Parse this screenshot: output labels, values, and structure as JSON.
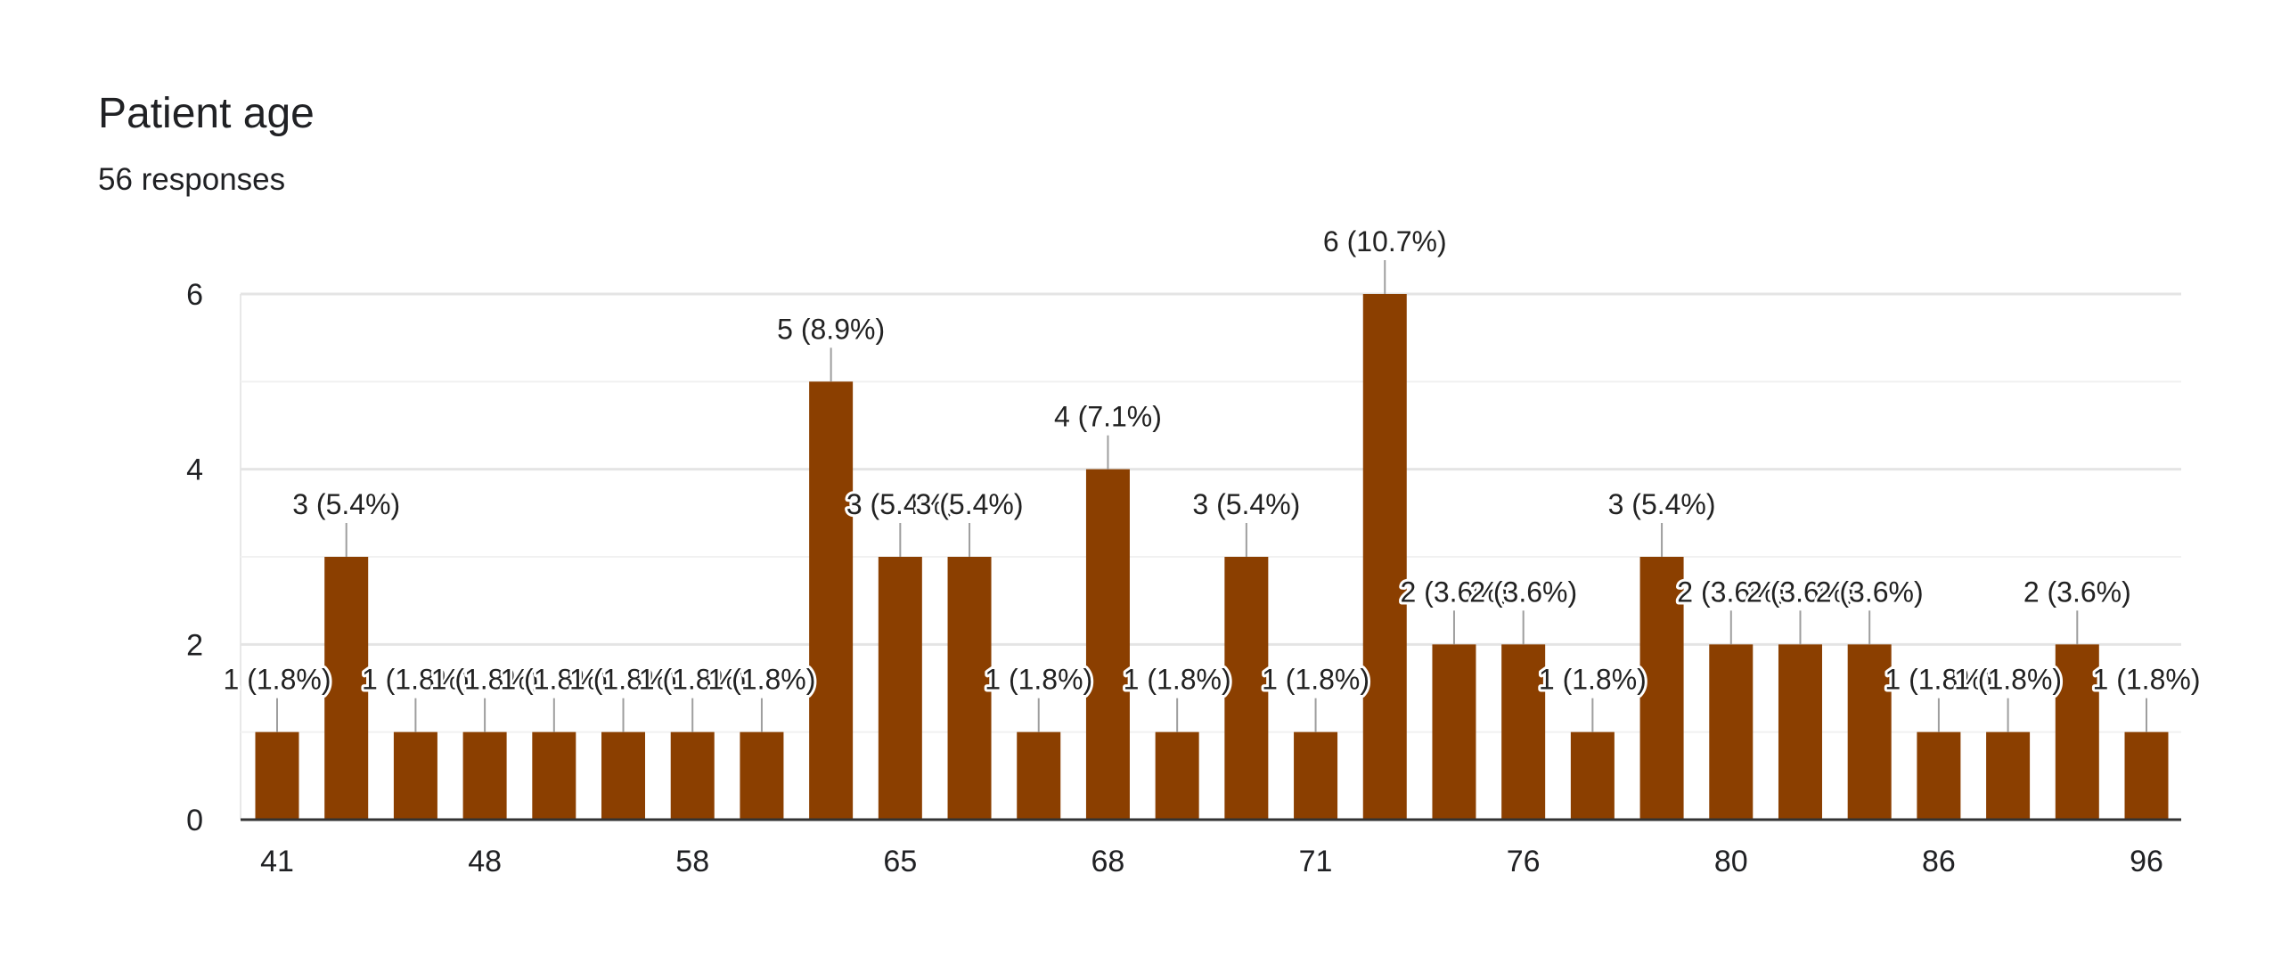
{
  "title": "Patient age",
  "subtitle": "56 responses",
  "colors": {
    "bar": "#8b3f00",
    "grid": "#e8e8e8",
    "axis": "#333333",
    "text": "#202124"
  },
  "chart_data": {
    "type": "bar",
    "title": "Patient age",
    "subtitle": "56 responses",
    "grid": true,
    "ylim": [
      0,
      6
    ],
    "y_ticks": [
      0,
      2,
      4,
      6
    ],
    "x_tick_labels": [
      {
        "index": 0,
        "label": "41"
      },
      {
        "index": 3,
        "label": "48"
      },
      {
        "index": 6,
        "label": "58"
      },
      {
        "index": 9,
        "label": "65"
      },
      {
        "index": 12,
        "label": "68"
      },
      {
        "index": 15,
        "label": "71"
      },
      {
        "index": 18,
        "label": "76"
      },
      {
        "index": 21,
        "label": "80"
      },
      {
        "index": 24,
        "label": "86"
      },
      {
        "index": 27,
        "label": "96"
      }
    ],
    "bars": [
      {
        "value": 1,
        "label": "1 (1.8%)"
      },
      {
        "value": 3,
        "label": "3 (5.4%)"
      },
      {
        "value": 1,
        "label": "1 (1.8%)"
      },
      {
        "value": 1,
        "label": "1 (1.8%)"
      },
      {
        "value": 1,
        "label": "1 (1.8%)"
      },
      {
        "value": 1,
        "label": "1 (1.8%)"
      },
      {
        "value": 1,
        "label": "1 (1.8%)"
      },
      {
        "value": 1,
        "label": "1 (1.8%)"
      },
      {
        "value": 5,
        "label": "5 (8.9%)"
      },
      {
        "value": 3,
        "label": "3 (5.4%)"
      },
      {
        "value": 3,
        "label": "3 (5.4%)"
      },
      {
        "value": 1,
        "label": "1 (1.8%)"
      },
      {
        "value": 4,
        "label": "4 (7.1%)"
      },
      {
        "value": 1,
        "label": "1 (1.8%)"
      },
      {
        "value": 3,
        "label": "3 (5.4%)"
      },
      {
        "value": 1,
        "label": "1 (1.8%)"
      },
      {
        "value": 6,
        "label": "6 (10.7%)"
      },
      {
        "value": 2,
        "label": "2 (3.6%)"
      },
      {
        "value": 2,
        "label": "2 (3.6%)"
      },
      {
        "value": 1,
        "label": "1 (1.8%)"
      },
      {
        "value": 3,
        "label": "3 (5.4%)"
      },
      {
        "value": 2,
        "label": "2 (3.6%)"
      },
      {
        "value": 2,
        "label": "2 (3.6%)"
      },
      {
        "value": 2,
        "label": "2 (3.6%)"
      },
      {
        "value": 1,
        "label": "1 (1.8%)"
      },
      {
        "value": 1,
        "label": "1 (1.8%)"
      },
      {
        "value": 2,
        "label": "2 (3.6%)"
      },
      {
        "value": 1,
        "label": "1 (1.8%)"
      }
    ]
  }
}
